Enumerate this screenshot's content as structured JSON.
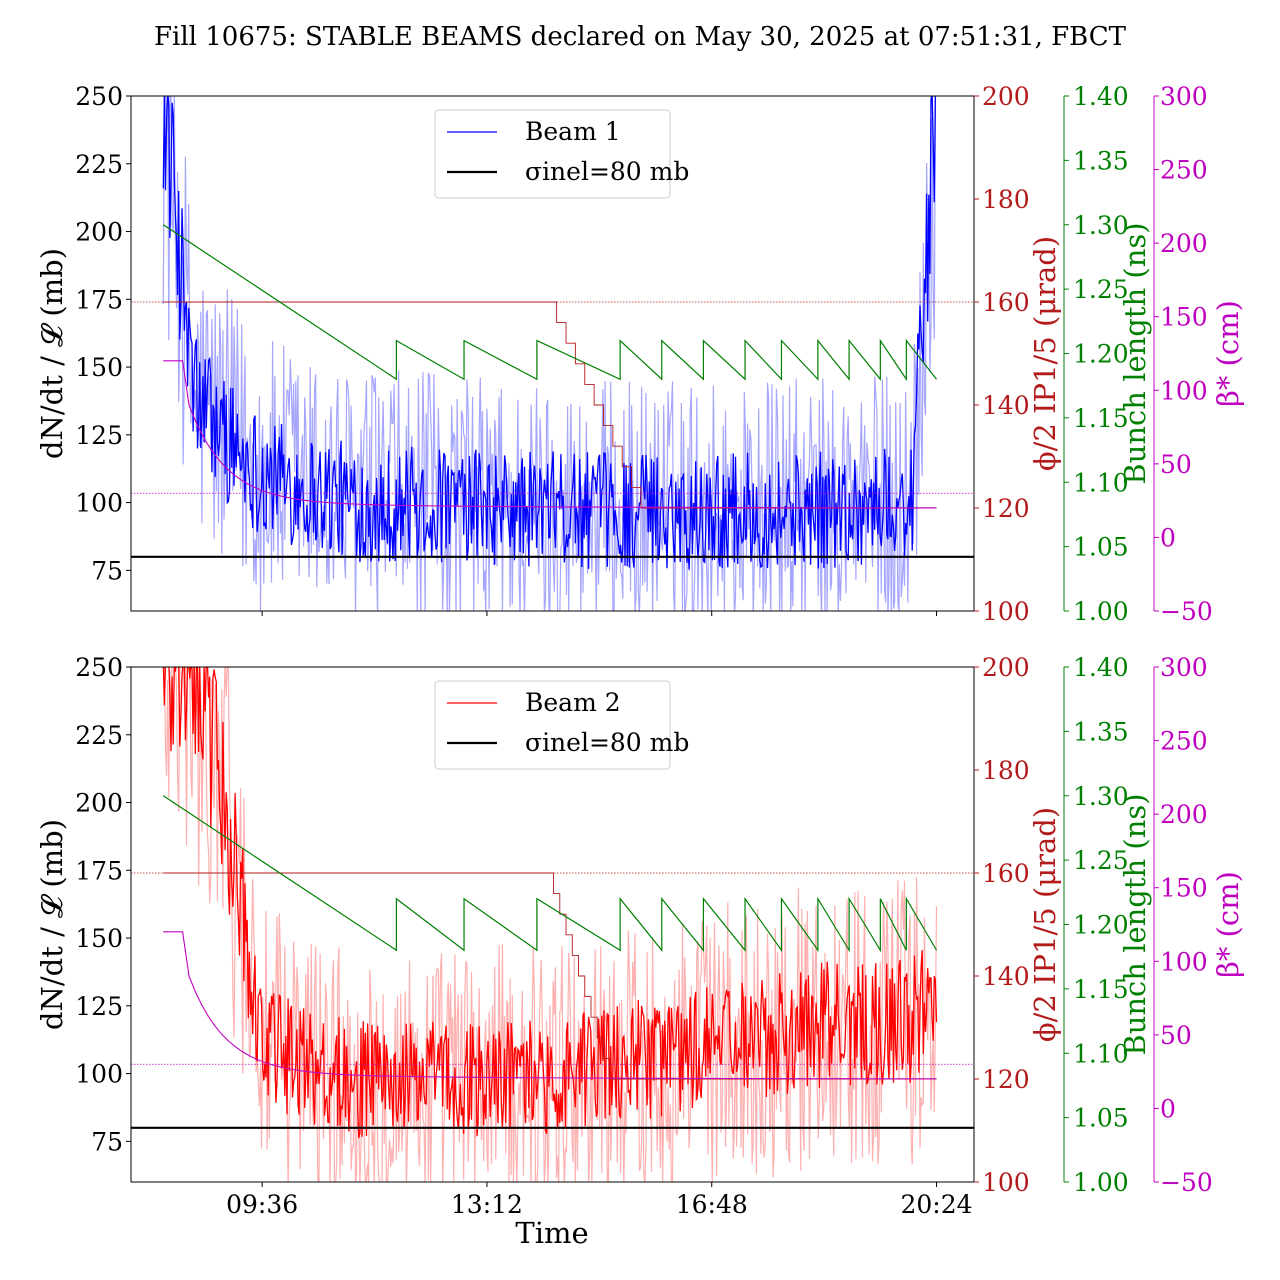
{
  "title": "Fill 10675: STABLE BEAMS declared on May 30, 2025 at 07:51:31, FBCT",
  "xlabel": "Time",
  "x_ticks": [
    "09:36",
    "13:12",
    "16:48",
    "20:24"
  ],
  "colors": {
    "beam1": "#0000ff",
    "beam1_light": "#a6a6ff",
    "beam2": "#ff0000",
    "beam2_light": "#ffb0b0",
    "crossing": "#b31b1b",
    "bunch": "#008000",
    "beta": "#c000c0",
    "sigma": "#000000"
  },
  "axes_labels": {
    "left": "dN/dt / 𝓛 (mb)",
    "right_crossing": "ϕ/2 IP1/5 (μrad)",
    "right_bunch": "Bunch length (ns)",
    "right_beta": "β* (cm)"
  },
  "legend": {
    "sigma": "σinel=80 mb"
  },
  "chart_data": [
    {
      "type": "line",
      "panel": "Beam 1",
      "x": [
        "08:01",
        "08:30",
        "09:00",
        "09:36",
        "11:00",
        "13:12",
        "14:30",
        "16:48",
        "18:30",
        "20:00",
        "20:24"
      ],
      "series": [
        {
          "name": "Beam 1",
          "axis": "left",
          "values": [
            250,
            140,
            125,
            110,
            100,
            98,
            97,
            97,
            97,
            100,
            250
          ]
        },
        {
          "name": "σinel=80 mb",
          "axis": "left",
          "values": [
            80,
            80,
            80,
            80,
            80,
            80,
            80,
            80,
            80,
            80,
            80
          ]
        }
      ],
      "crossing_angle_urad": {
        "start": 160,
        "end": 120,
        "step_start": "14:10",
        "step_end": "15:40"
      },
      "bunch_length_ns": {
        "start": 1.3,
        "sawtooth_min": 1.18,
        "sawtooth_max": 1.21
      },
      "beta_star_cm": {
        "start": 120,
        "end": 20
      },
      "ylim": [
        60,
        250
      ],
      "y2lim": [
        100,
        200
      ],
      "y3lim": [
        1.0,
        1.4
      ],
      "y4lim": [
        -50,
        300
      ],
      "yticks": [
        75,
        100,
        125,
        150,
        175,
        200,
        225,
        250
      ],
      "y2ticks": [
        100,
        120,
        140,
        160,
        180,
        200
      ],
      "y3ticks": [
        "1.00",
        "1.05",
        "1.10",
        "1.15",
        "1.20",
        "1.25",
        "1.30",
        "1.35",
        "1.40"
      ],
      "y4ticks": [
        "−50",
        "0",
        "50",
        "100",
        "150",
        "200",
        "250",
        "300"
      ]
    },
    {
      "type": "line",
      "panel": "Beam 2",
      "x": [
        "08:01",
        "08:30",
        "09:00",
        "09:36",
        "11:00",
        "13:12",
        "14:30",
        "16:48",
        "18:30",
        "20:00",
        "20:24"
      ],
      "series": [
        {
          "name": "Beam 2",
          "axis": "left",
          "values": [
            250,
            250,
            200,
            110,
            98,
            98,
            100,
            110,
            118,
            120,
            125
          ]
        },
        {
          "name": "σinel=80 mb",
          "axis": "left",
          "values": [
            80,
            80,
            80,
            80,
            80,
            80,
            80,
            80,
            80,
            80,
            80
          ]
        }
      ],
      "crossing_angle_urad": {
        "start": 160,
        "end": 120,
        "step_start": "14:10",
        "step_end": "15:10"
      },
      "bunch_length_ns": {
        "start": 1.3,
        "sawtooth_min": 1.18,
        "sawtooth_max": 1.22
      },
      "beta_star_cm": {
        "start": 120,
        "end": 20
      },
      "ylim": [
        60,
        250
      ],
      "y2lim": [
        100,
        200
      ],
      "y3lim": [
        1.0,
        1.4
      ],
      "y4lim": [
        -50,
        300
      ],
      "yticks": [
        75,
        100,
        125,
        150,
        175,
        200,
        225,
        250
      ],
      "y2ticks": [
        100,
        120,
        140,
        160,
        180,
        200
      ],
      "y3ticks": [
        "1.00",
        "1.05",
        "1.10",
        "1.15",
        "1.20",
        "1.25",
        "1.30",
        "1.35",
        "1.40"
      ],
      "y4ticks": [
        "−50",
        "0",
        "50",
        "100",
        "150",
        "200",
        "250",
        "300"
      ]
    }
  ]
}
